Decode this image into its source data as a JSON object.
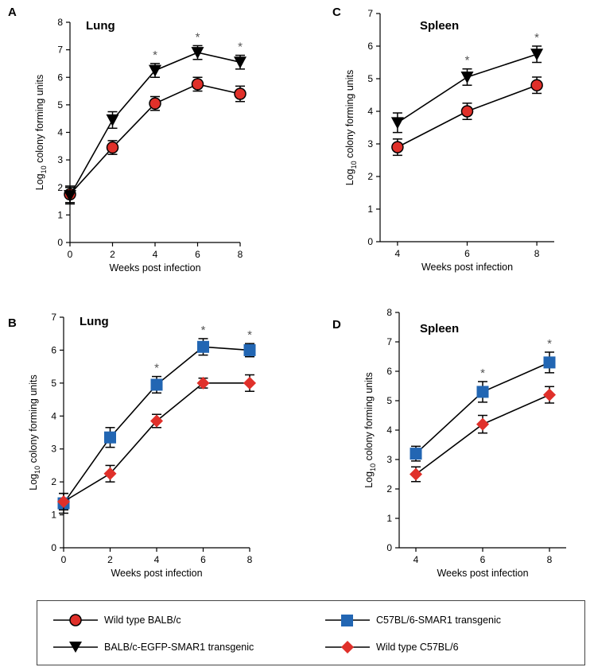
{
  "chart_data": [
    {
      "id": "A",
      "type": "line",
      "panel_label": "A",
      "title": "Lung",
      "xlabel": "Weeks post infection",
      "ylabel": "Log10 colony forming units",
      "xlim": [
        0,
        8
      ],
      "ylim": [
        0,
        8
      ],
      "xticks": [
        0,
        2,
        4,
        6,
        8
      ],
      "yticks": [
        0,
        1,
        2,
        3,
        4,
        5,
        6,
        7,
        8
      ],
      "significance_x": [
        4,
        6,
        8
      ],
      "significance_mark": "*",
      "series": [
        {
          "name": "Wild type BALB/c",
          "marker": "circle",
          "color": "#e0302a",
          "x": [
            0,
            2,
            4,
            6,
            8
          ],
          "values": [
            1.75,
            3.45,
            5.05,
            5.75,
            5.4
          ],
          "errors": [
            0.3,
            0.25,
            0.25,
            0.25,
            0.28
          ]
        },
        {
          "name": "BALB/c-EGFP-SMAR1 transgenic",
          "marker": "triangle-down",
          "color": "#000000",
          "x": [
            0,
            2,
            4,
            6,
            8
          ],
          "values": [
            1.7,
            4.45,
            6.25,
            6.9,
            6.55
          ],
          "errors": [
            0.3,
            0.3,
            0.25,
            0.25,
            0.25
          ]
        }
      ]
    },
    {
      "id": "B",
      "type": "line",
      "panel_label": "B",
      "title": "Lung",
      "xlabel": "Weeks post infection",
      "ylabel": "Log10 colony forming units",
      "xlim": [
        0,
        8
      ],
      "ylim": [
        0,
        7
      ],
      "xticks": [
        0,
        2,
        4,
        6,
        8
      ],
      "yticks": [
        0,
        1,
        2,
        3,
        4,
        5,
        6,
        7
      ],
      "significance_x": [
        4,
        6,
        8
      ],
      "significance_mark": "*",
      "series": [
        {
          "name": "C57BL/6-SMAR1 transgenic",
          "marker": "square",
          "color": "#2266b3",
          "x": [
            0,
            2,
            4,
            6,
            8
          ],
          "values": [
            1.35,
            3.35,
            4.95,
            6.1,
            6.0
          ],
          "errors": [
            0.3,
            0.3,
            0.25,
            0.25,
            0.2
          ]
        },
        {
          "name": "Wild type C57BL/6",
          "marker": "diamond",
          "color": "#e0302a",
          "x": [
            0,
            2,
            4,
            6,
            8
          ],
          "values": [
            1.4,
            2.25,
            3.85,
            5.0,
            5.0
          ],
          "errors": [
            0.25,
            0.25,
            0.2,
            0.15,
            0.25
          ]
        }
      ]
    },
    {
      "id": "C",
      "type": "line",
      "panel_label": "C",
      "title": "Spleen",
      "xlabel": "Weeks post infection",
      "ylabel": "Log10 colony forming units",
      "xlim": [
        3.5,
        8.5
      ],
      "ylim": [
        0,
        7
      ],
      "xticks": [
        4,
        6,
        8
      ],
      "yticks": [
        0,
        1,
        2,
        3,
        4,
        5,
        6,
        7
      ],
      "significance_x": [
        6,
        8
      ],
      "significance_mark": "*",
      "series": [
        {
          "name": "Wild type BALB/c",
          "marker": "circle",
          "color": "#e0302a",
          "x": [
            4,
            6,
            8
          ],
          "values": [
            2.9,
            4.0,
            4.8
          ],
          "errors": [
            0.25,
            0.25,
            0.25
          ]
        },
        {
          "name": "BALB/c-EGFP-SMAR1 transgenic",
          "marker": "triangle-down",
          "color": "#000000",
          "x": [
            4,
            6,
            8
          ],
          "values": [
            3.65,
            5.05,
            5.75
          ],
          "errors": [
            0.3,
            0.25,
            0.25
          ]
        }
      ]
    },
    {
      "id": "D",
      "type": "line",
      "panel_label": "D",
      "title": "Spleen",
      "xlabel": "Weeks post infection",
      "ylabel": "Log10 colony forming units",
      "xlim": [
        3.5,
        8.5
      ],
      "ylim": [
        0,
        8
      ],
      "xticks": [
        4,
        6,
        8
      ],
      "yticks": [
        0,
        1,
        2,
        3,
        4,
        5,
        6,
        7,
        8
      ],
      "significance_x": [
        6,
        8
      ],
      "significance_mark": "*",
      "series": [
        {
          "name": "C57BL/6-SMAR1 transgenic",
          "marker": "square",
          "color": "#2266b3",
          "x": [
            4,
            6,
            8
          ],
          "values": [
            3.2,
            5.3,
            6.3
          ],
          "errors": [
            0.25,
            0.35,
            0.35
          ]
        },
        {
          "name": "Wild type C57BL/6",
          "marker": "diamond",
          "color": "#e0302a",
          "x": [
            4,
            6,
            8
          ],
          "values": [
            2.5,
            4.2,
            5.2
          ],
          "errors": [
            0.25,
            0.3,
            0.28
          ]
        }
      ]
    }
  ],
  "legend": {
    "items": [
      {
        "label": "Wild type BALB/c",
        "marker": "circle",
        "color": "#e0302a"
      },
      {
        "label": "C57BL/6-SMAR1 transgenic",
        "marker": "square",
        "color": "#2266b3"
      },
      {
        "label": "BALB/c-EGFP-SMAR1 transgenic",
        "marker": "triangle-down",
        "color": "#000000"
      },
      {
        "label": "Wild type C57BL/6",
        "marker": "diamond",
        "color": "#e0302a"
      }
    ]
  }
}
